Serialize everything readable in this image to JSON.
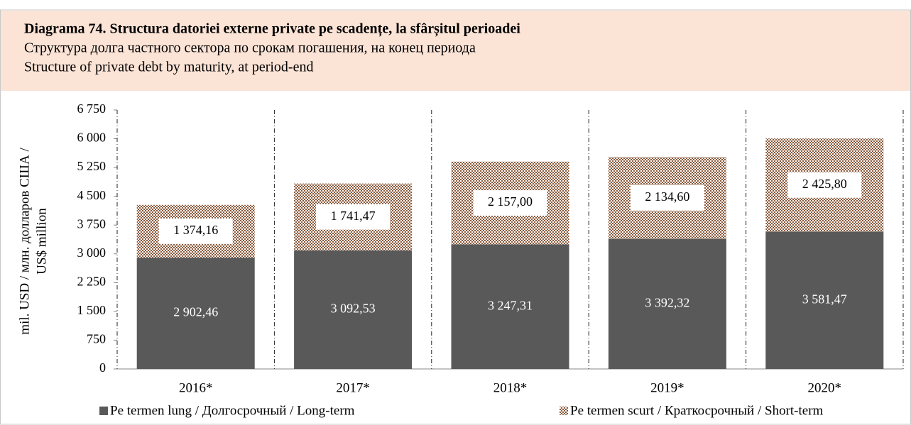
{
  "chart_data": {
    "type": "stacked-bar",
    "title": "Diagrama 74. Structura datoriei externe private pe scadențe, la sfârșitul perioadei",
    "subtitle": [
      "Структура долга частного сектора по срокам погашения, на конец периода",
      "Structure of private debt by maturity, at period-end"
    ],
    "y_label": [
      "mil. USD / млн. долларов США /",
      "US$ million"
    ],
    "categories": [
      "2016*",
      "2017*",
      "2018*",
      "2019*",
      "2020*"
    ],
    "series": [
      {
        "name": "Pe termen lung / Долгосрочный / Long-term",
        "color": "#595959",
        "values": [
          2902.46,
          3092.53,
          3247.31,
          3392.32,
          3581.47
        ],
        "value_labels": [
          "2 902,46",
          "3 092,53",
          "3 247,31",
          "3 392,32",
          "3 581,47"
        ]
      },
      {
        "name": "Pe termen scurt / Краткосрочный / Short-term",
        "color": "#8c5a3c",
        "values": [
          1374.16,
          1741.47,
          2157.0,
          2134.6,
          2425.8
        ],
        "value_labels": [
          "1 374,16",
          "1 741,47",
          "2 157,00",
          "2 134,60",
          "2 425,80"
        ]
      }
    ],
    "ylim": [
      0,
      6750
    ],
    "yticks": [
      0,
      750,
      {
        "value": 1500,
        "label": "1 500"
      },
      {
        "value": 2250,
        "label": "2 250"
      },
      {
        "value": 3000,
        "label": "3 000"
      },
      {
        "value": 3750,
        "label": "3 750"
      },
      {
        "value": 4500,
        "label": "4 500"
      },
      {
        "value": 5250,
        "label": "5 250"
      },
      {
        "value": 6000,
        "label": "6 000"
      },
      {
        "value": 6750,
        "label": "6 750"
      }
    ]
  }
}
